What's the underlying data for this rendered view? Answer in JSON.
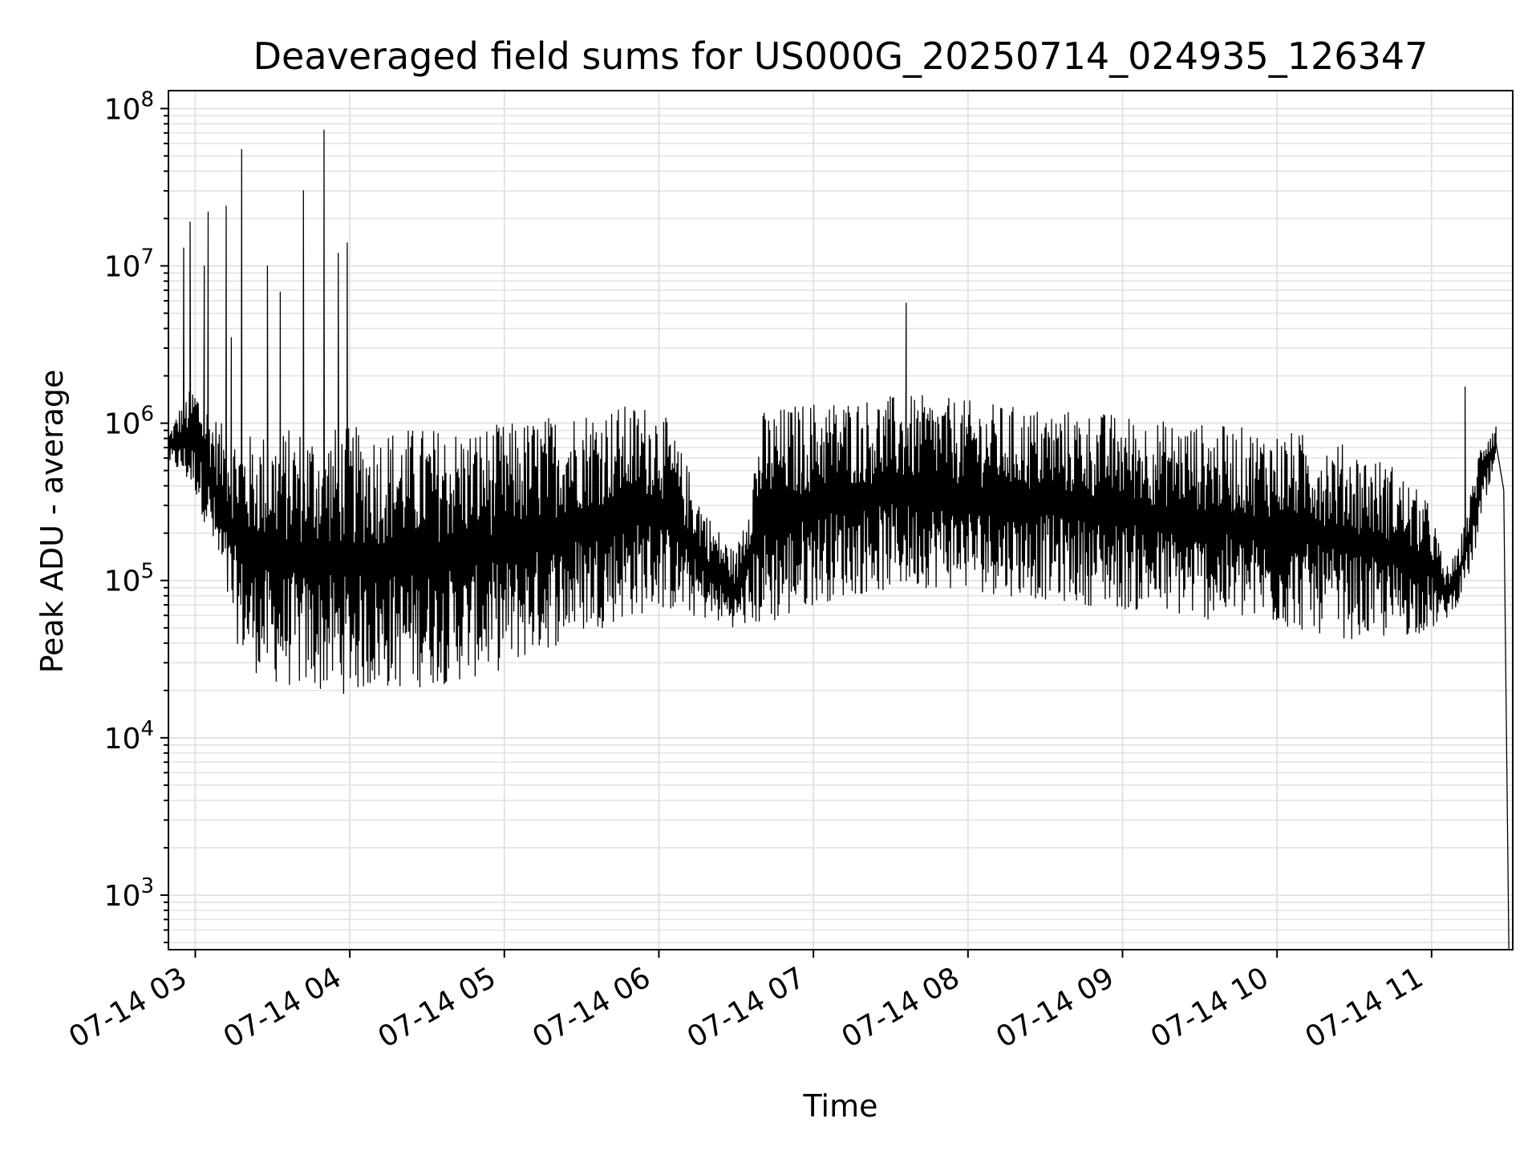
{
  "chart_data": {
    "type": "line",
    "title": "Deaveraged field sums for US000G_20250714_024935_126347",
    "xlabel": "Time",
    "ylabel": "Peak ADU - average",
    "yscale": "log",
    "ylim": [
      450,
      130000000
    ],
    "xlim": [
      "2025-07-14 02:49:35",
      "2025-07-14 11:31:30"
    ],
    "grid": true,
    "line_color": "#000000",
    "grid_color": "#e3e3e3",
    "x_tick_labels": [
      "07-14 03",
      "07-14 04",
      "07-14 05",
      "07-14 06",
      "07-14 07",
      "07-14 08",
      "07-14 09",
      "07-14 10",
      "07-14 11"
    ],
    "y_tick_labels": [
      {
        "base": "10",
        "exp": "3"
      },
      {
        "base": "10",
        "exp": "4"
      },
      {
        "base": "10",
        "exp": "5"
      },
      {
        "base": "10",
        "exp": "6"
      },
      {
        "base": "10",
        "exp": "7"
      },
      {
        "base": "10",
        "exp": "8"
      }
    ],
    "series": [
      {
        "envelope": {
          "x": [
            "2025-07-14 02:50",
            "2025-07-14 02:55",
            "2025-07-14 03:00",
            "2025-07-14 03:05",
            "2025-07-14 03:10",
            "2025-07-14 03:15",
            "2025-07-14 03:20",
            "2025-07-14 03:30",
            "2025-07-14 03:40",
            "2025-07-14 03:50",
            "2025-07-14 04:00",
            "2025-07-14 04:15",
            "2025-07-14 04:30",
            "2025-07-14 04:45",
            "2025-07-14 05:00",
            "2025-07-14 05:15",
            "2025-07-14 05:30",
            "2025-07-14 05:45",
            "2025-07-14 06:00",
            "2025-07-14 06:10",
            "2025-07-14 06:20",
            "2025-07-14 06:30",
            "2025-07-14 06:40",
            "2025-07-14 06:50",
            "2025-07-14 07:00",
            "2025-07-14 07:15",
            "2025-07-14 07:30",
            "2025-07-14 07:45",
            "2025-07-14 08:00",
            "2025-07-14 08:15",
            "2025-07-14 08:30",
            "2025-07-14 08:45",
            "2025-07-14 09:00",
            "2025-07-14 09:15",
            "2025-07-14 09:30",
            "2025-07-14 09:45",
            "2025-07-14 10:00",
            "2025-07-14 10:15",
            "2025-07-14 10:30",
            "2025-07-14 10:45",
            "2025-07-14 11:00",
            "2025-07-14 11:05",
            "2025-07-14 11:10",
            "2025-07-14 11:15",
            "2025-07-14 11:20",
            "2025-07-14 11:25",
            "2025-07-14 11:28",
            "2025-07-14 11:30"
          ],
          "low": [
            550000,
            450000,
            350000,
            200000,
            90000,
            45000,
            28000,
            22000,
            20000,
            19000,
            19000,
            20000,
            21000,
            23000,
            27000,
            35000,
            45000,
            55000,
            65000,
            60000,
            55000,
            50000,
            50000,
            55000,
            70000,
            80000,
            85000,
            90000,
            85000,
            80000,
            75000,
            70000,
            65000,
            60000,
            56000,
            54000,
            50000,
            46000,
            42000,
            42000,
            48000,
            55000,
            70000,
            110000,
            250000,
            500000,
            150000,
            450
          ],
          "high": [
            900000,
            1400000,
            1800000,
            1300000,
            1000000,
            900000,
            850000,
            900000,
            950000,
            950000,
            950000,
            950000,
            950000,
            950000,
            1000000,
            1100000,
            1250000,
            1300000,
            1350000,
            600000,
            250000,
            150000,
            1200000,
            1300000,
            1400000,
            1450000,
            1500000,
            1500000,
            1400000,
            1300000,
            1250000,
            1200000,
            1150000,
            1050000,
            1000000,
            950000,
            900000,
            850000,
            700000,
            550000,
            300000,
            120000,
            150000,
            350000,
            950000,
            1000000,
            600000,
            450
          ]
        },
        "spikes": [
          {
            "x": "2025-07-14 02:55:30",
            "y": 13000000
          },
          {
            "x": "2025-07-14 02:58:00",
            "y": 19000000
          },
          {
            "x": "2025-07-14 03:03:30",
            "y": 10000000
          },
          {
            "x": "2025-07-14 03:05:00",
            "y": 22000000
          },
          {
            "x": "2025-07-14 03:12:00",
            "y": 24000000
          },
          {
            "x": "2025-07-14 03:14:00",
            "y": 3500000
          },
          {
            "x": "2025-07-14 03:18:00",
            "y": 55000000
          },
          {
            "x": "2025-07-14 03:28:00",
            "y": 10000000
          },
          {
            "x": "2025-07-14 03:33:00",
            "y": 6800000
          },
          {
            "x": "2025-07-14 03:42:00",
            "y": 30000000
          },
          {
            "x": "2025-07-14 03:50:00",
            "y": 73000000
          },
          {
            "x": "2025-07-14 03:55:30",
            "y": 12000000
          },
          {
            "x": "2025-07-14 03:59:00",
            "y": 14000000
          },
          {
            "x": "2025-07-14 07:36:00",
            "y": 5800000
          },
          {
            "x": "2025-07-14 11:13:00",
            "y": 1700000
          }
        ]
      }
    ]
  }
}
